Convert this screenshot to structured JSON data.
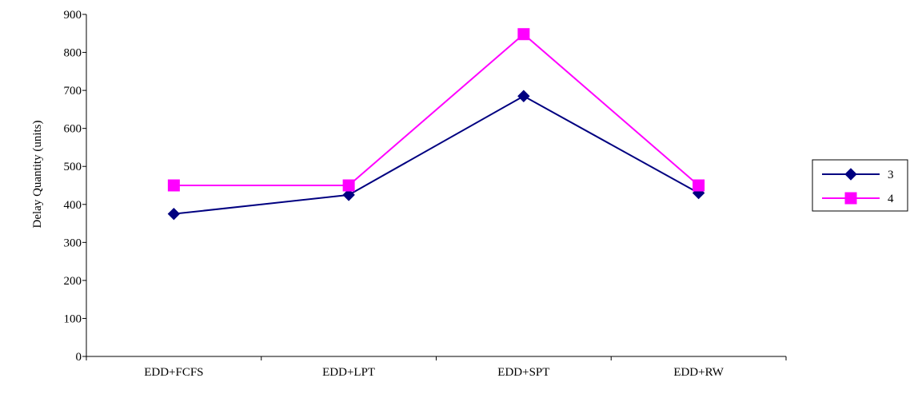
{
  "chart_data": {
    "type": "line",
    "title": "",
    "xlabel": "",
    "ylabel": "Delay Quantity (units)",
    "categories": [
      "EDD+FCFS",
      "EDD+LPT",
      "EDD+SPT",
      "EDD+RW"
    ],
    "ylim": [
      0,
      900
    ],
    "yticks": [
      "0",
      "100",
      "200",
      "300",
      "400",
      "500",
      "600",
      "700",
      "800",
      "900"
    ],
    "grid": false,
    "legend_position": "right",
    "series": [
      {
        "name": "3",
        "values": [
          375,
          425,
          685,
          430
        ],
        "color": "#000080",
        "marker": "diamond"
      },
      {
        "name": "4",
        "values": [
          450,
          450,
          848,
          450
        ],
        "color": "#FF00FF",
        "marker": "square"
      }
    ]
  }
}
